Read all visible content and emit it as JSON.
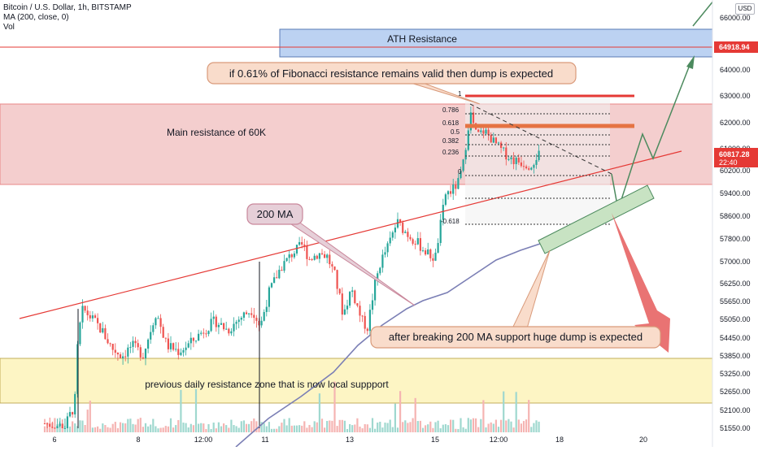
{
  "header": {
    "symbol_line": "Bitcoin / U.S. Dollar, 1h, BITSTAMP",
    "ma_line": "MA (200, close, 0)",
    "vol_line": "Vol"
  },
  "currency_button": "USD",
  "price_tags": {
    "ath": {
      "value": "64918.94",
      "color": "#e53935"
    },
    "current": {
      "value": "60817.28",
      "time": "22:40",
      "color": "#e53935"
    }
  },
  "annotations": {
    "ath_resistance": "ATH Resistance",
    "main_resistance": "Main resistance of 60K",
    "fib_callout": "if 0.61% of Fibonacci resistance remains valid then dump is expected",
    "ma_label": "200 MA",
    "dump_callout": "after breaking 200 MA support huge dump is expected",
    "support_zone": "previous daily resistance zone that is now local suppport"
  },
  "chart_data": {
    "type": "candlestick",
    "y_axis": {
      "range": [
        51300,
        66200
      ],
      "ticks": [
        "66000.00",
        "65000.00",
        "64000.00",
        "63000.00",
        "62000.00",
        "61000.00",
        "60200.00",
        "59400.00",
        "58600.00",
        "57800.00",
        "57000.00",
        "56250.00",
        "55650.00",
        "55050.00",
        "54450.00",
        "53850.00",
        "53250.00",
        "52650.00",
        "52100.00",
        "51550.00"
      ]
    },
    "x_axis": {
      "ticks": [
        "6",
        "8",
        "12:00",
        "11",
        "13",
        "15",
        "12:00",
        "18",
        "20"
      ]
    },
    "fib_levels": [
      "1",
      "0.786",
      "0.618",
      "0.5",
      "0.382",
      "0.236",
      "0",
      "-0.618"
    ],
    "ma": {
      "name": "MA (200, close, 0)",
      "color": "#7b7fb5"
    },
    "zones": {
      "ath_resistance": [
        64550,
        65600
      ],
      "main_resistance": [
        59750,
        62700
      ],
      "local_support": [
        52300,
        53800
      ]
    },
    "colors": {
      "up": "#26a69a",
      "down": "#ef5350"
    }
  }
}
